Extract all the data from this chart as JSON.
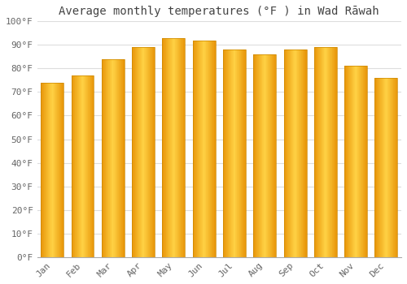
{
  "title": "Average monthly temperatures (°F ) in Wad Rāwah",
  "months": [
    "Jan",
    "Feb",
    "Mar",
    "Apr",
    "May",
    "Jun",
    "Jul",
    "Aug",
    "Sep",
    "Oct",
    "Nov",
    "Dec"
  ],
  "values": [
    74,
    77,
    84,
    89,
    93,
    92,
    88,
    86,
    88,
    89,
    81,
    76
  ],
  "bar_color_left": "#E8960A",
  "bar_color_center": "#FFCC44",
  "bar_color_right": "#E8960A",
  "background_color": "#ffffff",
  "ylim": [
    0,
    100
  ],
  "ytick_step": 10,
  "grid_color": "#dddddd",
  "title_fontsize": 10,
  "tick_fontsize": 8,
  "font_family": "monospace"
}
